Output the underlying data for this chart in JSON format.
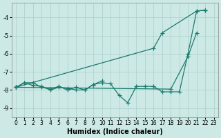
{
  "background_color": "#cce9e5",
  "grid_color": "#aacfcb",
  "line_color": "#1a7a6e",
  "xlabel": "Humidex (Indice chaleur)",
  "xlim": [
    -0.5,
    23.5
  ],
  "ylim": [
    -9.5,
    -3.2
  ],
  "yticks": [
    -9,
    -8,
    -7,
    -6,
    -5,
    -4
  ],
  "xticks": [
    0,
    1,
    2,
    3,
    4,
    5,
    6,
    7,
    8,
    9,
    10,
    11,
    12,
    13,
    14,
    15,
    16,
    17,
    18,
    19,
    20,
    21,
    22,
    23
  ],
  "series": [
    {
      "x": [
        0,
        1,
        2,
        3,
        4,
        5,
        6,
        7,
        8,
        9,
        10,
        11,
        12,
        13,
        14,
        15,
        16,
        17,
        18,
        19,
        20,
        21,
        22
      ],
      "y": [
        -7.85,
        -7.6,
        -7.75,
        -7.8,
        -8.0,
        -7.85,
        -7.9,
        -8.0,
        -8.0,
        -7.7,
        -7.6,
        -7.65,
        -8.3,
        -8.7,
        -7.8,
        -7.8,
        -7.8,
        -8.1,
        -8.1,
        -8.1,
        -6.0,
        -3.65,
        -3.6
      ]
    },
    {
      "x": [
        0,
        1,
        2,
        3,
        4,
        5,
        6,
        7,
        8,
        9,
        10
      ],
      "y": [
        -7.85,
        -7.6,
        -7.6,
        -7.85,
        -7.95,
        -7.8,
        -8.0,
        -7.85,
        -8.0,
        -7.7,
        -7.5
      ]
    },
    {
      "x": [
        0,
        16,
        17,
        21,
        22
      ],
      "y": [
        -7.85,
        -5.7,
        -4.85,
        -3.65,
        -3.6
      ]
    },
    {
      "x": [
        0,
        18,
        20,
        21
      ],
      "y": [
        -7.85,
        -7.95,
        -6.15,
        -4.85
      ]
    }
  ]
}
